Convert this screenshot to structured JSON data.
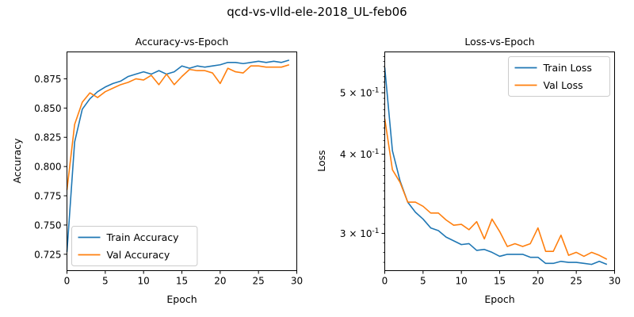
{
  "figure": {
    "suptitle": "qcd-vs-vlld-ele-2018_UL-feb06"
  },
  "colors": {
    "train": "#1f77b4",
    "val": "#ff7f0e"
  },
  "chart_data": [
    {
      "type": "line",
      "title": "Accuracy-vs-Epoch",
      "xlabel": "Epoch",
      "ylabel": "Accuracy",
      "xlim": [
        0,
        30
      ],
      "ylim": [
        0.711,
        0.898
      ],
      "xticks": [
        0,
        5,
        10,
        15,
        20,
        25,
        30
      ],
      "yticks": [
        0.725,
        0.75,
        0.775,
        0.8,
        0.825,
        0.85,
        0.875
      ],
      "ytick_labels": [
        "0.725",
        "0.750",
        "0.775",
        "0.800",
        "0.825",
        "0.850",
        "0.875"
      ],
      "yscale": "linear",
      "grid": false,
      "legend": "lower-left",
      "x": [
        0,
        1,
        2,
        3,
        4,
        5,
        6,
        7,
        8,
        9,
        10,
        11,
        12,
        13,
        14,
        15,
        16,
        17,
        18,
        19,
        20,
        21,
        22,
        23,
        24,
        25,
        26,
        27,
        28,
        29
      ],
      "series": [
        {
          "name": "Train Accuracy",
          "color_key": "train",
          "values": [
            0.727,
            0.821,
            0.849,
            0.858,
            0.864,
            0.868,
            0.871,
            0.873,
            0.877,
            0.879,
            0.881,
            0.879,
            0.882,
            0.879,
            0.881,
            0.886,
            0.884,
            0.886,
            0.885,
            0.886,
            0.887,
            0.889,
            0.889,
            0.888,
            0.889,
            0.89,
            0.889,
            0.89,
            0.889,
            0.891
          ]
        },
        {
          "name": "Val Accuracy",
          "color_key": "val",
          "values": [
            0.78,
            0.836,
            0.855,
            0.863,
            0.859,
            0.864,
            0.867,
            0.87,
            0.872,
            0.875,
            0.874,
            0.878,
            0.87,
            0.879,
            0.87,
            0.877,
            0.883,
            0.882,
            0.882,
            0.88,
            0.871,
            0.884,
            0.881,
            0.88,
            0.886,
            0.886,
            0.885,
            0.885,
            0.885,
            0.887
          ]
        }
      ]
    },
    {
      "type": "line",
      "title": "Loss-vs-Epoch",
      "xlabel": "Epoch",
      "ylabel": "Loss",
      "xlim": [
        0,
        30
      ],
      "ylim": [
        0.262,
        0.58
      ],
      "xticks": [
        0,
        5,
        10,
        15,
        20,
        25,
        30
      ],
      "yticks": [
        0.3,
        0.4,
        0.5
      ],
      "ytick_labels": [
        "3 × 10^-1",
        "4 × 10^-1",
        "5 × 10^-1"
      ],
      "yscale": "log",
      "grid": false,
      "legend": "top-right",
      "x": [
        0,
        1,
        2,
        3,
        4,
        5,
        6,
        7,
        8,
        9,
        10,
        11,
        12,
        13,
        14,
        15,
        16,
        17,
        18,
        19,
        20,
        21,
        22,
        23,
        24,
        25,
        26,
        27,
        28,
        29
      ],
      "series": [
        {
          "name": "Train Loss",
          "color_key": "train",
          "values": [
            0.548,
            0.405,
            0.363,
            0.336,
            0.324,
            0.316,
            0.306,
            0.303,
            0.296,
            0.292,
            0.288,
            0.289,
            0.282,
            0.283,
            0.28,
            0.276,
            0.278,
            0.278,
            0.278,
            0.275,
            0.275,
            0.269,
            0.269,
            0.271,
            0.27,
            0.27,
            0.269,
            0.268,
            0.271,
            0.268
          ]
        },
        {
          "name": "Val Loss",
          "color_key": "val",
          "values": [
            0.455,
            0.378,
            0.361,
            0.336,
            0.336,
            0.331,
            0.323,
            0.323,
            0.315,
            0.309,
            0.31,
            0.304,
            0.313,
            0.294,
            0.316,
            0.302,
            0.286,
            0.289,
            0.286,
            0.289,
            0.306,
            0.281,
            0.281,
            0.298,
            0.277,
            0.28,
            0.276,
            0.28,
            0.277,
            0.273
          ]
        }
      ]
    }
  ]
}
